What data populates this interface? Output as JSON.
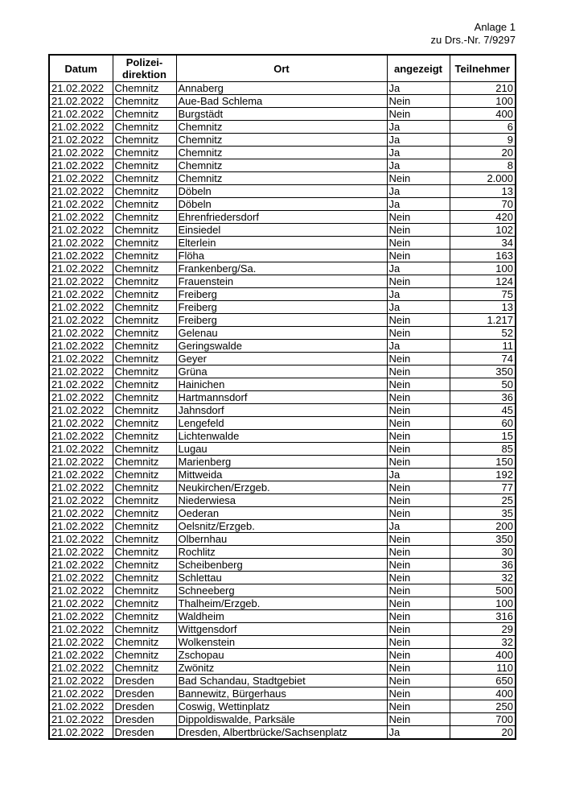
{
  "header": {
    "line1": "Anlage 1",
    "line2": "zu Drs.-Nr. 7/9297"
  },
  "columns": {
    "datum": "Datum",
    "pd1": "Polizei-",
    "pd2": "direktion",
    "ort": "Ort",
    "angezeigt": "angezeigt",
    "teilnehmer": "Teilnehmer"
  },
  "rows": [
    [
      "21.02.2022",
      "Chemnitz",
      "Annaberg",
      "Ja",
      "210"
    ],
    [
      "21.02.2022",
      "Chemnitz",
      "Aue-Bad Schlema",
      "Nein",
      "100"
    ],
    [
      "21.02.2022",
      "Chemnitz",
      "Burgstädt",
      "Nein",
      "400"
    ],
    [
      "21.02.2022",
      "Chemnitz",
      "Chemnitz",
      "Ja",
      "6"
    ],
    [
      "21.02.2022",
      "Chemnitz",
      "Chemnitz",
      "Ja",
      "9"
    ],
    [
      "21.02.2022",
      "Chemnitz",
      "Chemnitz",
      "Ja",
      "20"
    ],
    [
      "21.02.2022",
      "Chemnitz",
      "Chemnitz",
      "Ja",
      "8"
    ],
    [
      "21.02.2022",
      "Chemnitz",
      "Chemnitz",
      "Nein",
      "2.000"
    ],
    [
      "21.02.2022",
      "Chemnitz",
      "Döbeln",
      "Ja",
      "13"
    ],
    [
      "21.02.2022",
      "Chemnitz",
      "Döbeln",
      "Ja",
      "70"
    ],
    [
      "21.02.2022",
      "Chemnitz",
      "Ehrenfriedersdorf",
      "Nein",
      "420"
    ],
    [
      "21.02.2022",
      "Chemnitz",
      "Einsiedel",
      "Nein",
      "102"
    ],
    [
      "21.02.2022",
      "Chemnitz",
      "Elterlein",
      "Nein",
      "34"
    ],
    [
      "21.02.2022",
      "Chemnitz",
      "Flöha",
      "Nein",
      "163"
    ],
    [
      "21.02.2022",
      "Chemnitz",
      "Frankenberg/Sa.",
      "Ja",
      "100"
    ],
    [
      "21.02.2022",
      "Chemnitz",
      "Frauenstein",
      "Nein",
      "124"
    ],
    [
      "21.02.2022",
      "Chemnitz",
      "Freiberg",
      "Ja",
      "75"
    ],
    [
      "21.02.2022",
      "Chemnitz",
      "Freiberg",
      "Ja",
      "13"
    ],
    [
      "21.02.2022",
      "Chemnitz",
      "Freiberg",
      "Nein",
      "1.217"
    ],
    [
      "21.02.2022",
      "Chemnitz",
      "Gelenau",
      "Nein",
      "52"
    ],
    [
      "21.02.2022",
      "Chemnitz",
      "Geringswalde",
      "Ja",
      "11"
    ],
    [
      "21.02.2022",
      "Chemnitz",
      "Geyer",
      "Nein",
      "74"
    ],
    [
      "21.02.2022",
      "Chemnitz",
      "Grüna",
      "Nein",
      "350"
    ],
    [
      "21.02.2022",
      "Chemnitz",
      "Hainichen",
      "Nein",
      "50"
    ],
    [
      "21.02.2022",
      "Chemnitz",
      "Hartmannsdorf",
      "Nein",
      "36"
    ],
    [
      "21.02.2022",
      "Chemnitz",
      "Jahnsdorf",
      "Nein",
      "45"
    ],
    [
      "21.02.2022",
      "Chemnitz",
      "Lengefeld",
      "Nein",
      "60"
    ],
    [
      "21.02.2022",
      "Chemnitz",
      "Lichtenwalde",
      "Nein",
      "15"
    ],
    [
      "21.02.2022",
      "Chemnitz",
      "Lugau",
      "Nein",
      "85"
    ],
    [
      "21.02.2022",
      "Chemnitz",
      "Marienberg",
      "Nein",
      "150"
    ],
    [
      "21.02.2022",
      "Chemnitz",
      "Mittweida",
      "Ja",
      "192"
    ],
    [
      "21.02.2022",
      "Chemnitz",
      "Neukirchen/Erzgeb.",
      "Nein",
      "77"
    ],
    [
      "21.02.2022",
      "Chemnitz",
      "Niederwiesa",
      "Nein",
      "25"
    ],
    [
      "21.02.2022",
      "Chemnitz",
      "Oederan",
      "Nein",
      "35"
    ],
    [
      "21.02.2022",
      "Chemnitz",
      "Oelsnitz/Erzgeb.",
      "Ja",
      "200"
    ],
    [
      "21.02.2022",
      "Chemnitz",
      "Olbernhau",
      "Nein",
      "350"
    ],
    [
      "21.02.2022",
      "Chemnitz",
      "Rochlitz",
      "Nein",
      "30"
    ],
    [
      "21.02.2022",
      "Chemnitz",
      "Scheibenberg",
      "Nein",
      "36"
    ],
    [
      "21.02.2022",
      "Chemnitz",
      "Schlettau",
      "Nein",
      "32"
    ],
    [
      "21.02.2022",
      "Chemnitz",
      "Schneeberg",
      "Nein",
      "500"
    ],
    [
      "21.02.2022",
      "Chemnitz",
      "Thalheim/Erzgeb.",
      "Nein",
      "100"
    ],
    [
      "21.02.2022",
      "Chemnitz",
      "Waldheim",
      "Nein",
      "316"
    ],
    [
      "21.02.2022",
      "Chemnitz",
      "Wittgensdorf",
      "Nein",
      "29"
    ],
    [
      "21.02.2022",
      "Chemnitz",
      "Wolkenstein",
      "Nein",
      "32"
    ],
    [
      "21.02.2022",
      "Chemnitz",
      "Zschopau",
      "Nein",
      "400"
    ],
    [
      "21.02.2022",
      "Chemnitz",
      "Zwönitz",
      "Nein",
      "110"
    ],
    [
      "21.02.2022",
      "Dresden",
      "Bad Schandau, Stadtgebiet",
      "Nein",
      "650"
    ],
    [
      "21.02.2022",
      "Dresden",
      "Bannewitz, Bürgerhaus",
      "Nein",
      "400"
    ],
    [
      "21.02.2022",
      "Dresden",
      "Coswig, Wettinplatz",
      "Nein",
      "250"
    ],
    [
      "21.02.2022",
      "Dresden",
      "Dippoldiswalde, Parksäle",
      "Nein",
      "700"
    ],
    [
      "21.02.2022",
      "Dresden",
      "Dresden, Albertbrücke/Sachsenplatz",
      "Ja",
      "20"
    ]
  ]
}
